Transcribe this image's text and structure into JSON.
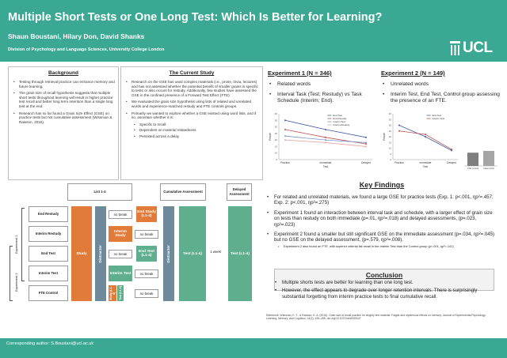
{
  "header": {
    "title": "Multiple Short Tests or One Long Test: Which Is Better for Learning?",
    "authors": "Shaun Boustani, Hilary Don, David Shanks",
    "department": "Division of Psychology and Language Sciences, University College London",
    "logo_text": "UCL"
  },
  "background": {
    "title": "Background",
    "bullets": [
      "Testing through retrieval practice can enhance memory and future learning.",
      "The grain size of recall hypothesis suggests that multiple short tests throughout learning will result in higher practice test recall and better long term retention than a single long test at the end.",
      "Research has so far found a Grain Size Effect (GSE) on practice tests but not cumulative assessment (Wissman & Rawson, 2015)."
    ]
  },
  "current_study": {
    "title": "The Current Study",
    "bullets": [
      "Research on the GSE has used complex materials (i.e., prose, trivia, lectures) and has not assessed whether the potential benefit of smaller grains is specific to tests or also occurs for restudy. Additionally, few studies have assessed the GSE in the confined presence of a Forward Test Effect (FTE).",
      "We evaluated the grain size hypothesis using lists of related and unrelated words and experience-matched restudy and FTE controls groups.",
      "Primarily we wanted to explore whether a GSE existed using word lists, and if so, ascertain whether it is:"
    ],
    "sub_bullets": [
      "Specific to recall",
      "Dependent on material relatedness",
      "Persisted across a delay"
    ]
  },
  "experiment1": {
    "title": "Experiment 1 (N = 346)",
    "bullets": [
      "Related words",
      "Interval Task (Test; Restudy) vs Task Schedule (Interim; End)."
    ],
    "legend": [
      "End Test",
      "End Restudy",
      "Interim Test",
      "Interim Restudy"
    ],
    "x_label": "Test",
    "y_label": "Recall"
  },
  "experiment2": {
    "title": "Experiment 2 (N = 149)",
    "bullets": [
      "Unrelated words",
      "Interim Test, End Test, Control group assessing the presence of an FTE."
    ],
    "legend": [
      "End Test",
      "Interim Test"
    ],
    "x_label": "Test",
    "y_label": "Recall",
    "bar_labels": [
      "FTE Control",
      "Interim Test"
    ]
  },
  "chart_data": [
    {
      "type": "line",
      "categories": [
        "Practice",
        "Immediate",
        "Delayed"
      ],
      "ylim": [
        5,
        40
      ],
      "yticks": [
        5,
        10,
        15,
        20,
        25,
        30,
        35,
        40
      ],
      "series": [
        {
          "name": "End Test",
          "values": [
            35,
            28,
            22
          ],
          "color": "#3d5aa8"
        },
        {
          "name": "End Restudy",
          "values": [
            28,
            22,
            17
          ],
          "color": "#c0504d"
        },
        {
          "name": "Interim Test",
          "values": [
            23,
            20,
            18
          ],
          "color": "#7b96c8"
        },
        {
          "name": "Interim Restudy",
          "values": [
            20,
            18,
            15
          ],
          "color": "#e5a3a0"
        }
      ]
    },
    {
      "type": "line",
      "categories": [
        "Practice",
        "Immediate",
        "Delayed"
      ],
      "ylim": [
        0,
        40
      ],
      "yticks": [
        0,
        5,
        10,
        15,
        20,
        25,
        30,
        35,
        40
      ],
      "series": [
        {
          "name": "End Test",
          "values": [
            30,
            20,
            8
          ],
          "color": "#3d5aa8"
        },
        {
          "name": "Interim Test",
          "values": [
            25,
            22,
            9
          ],
          "color": "#c0504d"
        }
      ]
    },
    {
      "type": "bar",
      "categories": [
        "FTE Control",
        "Interim Test"
      ],
      "values": [
        15,
        17
      ],
      "ylim": [
        0,
        25
      ],
      "colors": [
        "#7f7f7f",
        "#a5a5a5"
      ]
    }
  ],
  "design": {
    "header_list": "List 1-4",
    "header_cumulative": "Cumulative Assessment",
    "header_delayed": "Delayed Assessment",
    "rows": [
      "End Restudy",
      "Interim Restudy",
      "End Test",
      "Interim Test",
      "FTE Control"
    ],
    "exp1_label": "Experiment 1",
    "exp2_label": "Experiment 2",
    "study": "Study",
    "distractor": "Distractor",
    "no_break": "no break",
    "end_study": "End Study (L1-4)",
    "interim_study": "Interim Study",
    "end_test": "End Test (L1-4)",
    "interim_test": "Interim Test",
    "study_small": "Study (L1-4)",
    "test_l14": "Test (L1-4)",
    "one_week": "1 week",
    "colors": {
      "study": "#e07b39",
      "distractor": "#6e8a9a",
      "test": "#5fae8e"
    }
  },
  "key_findings": {
    "title": "Key Findings",
    "bullets": [
      "For related and unrelated materials, we found a large GSE for practice tests (Exp. 1: p<.001, ηp²=.457; Exp. 2: p<.001, ηp²=.275)",
      "Experiment 1 found an interaction between interval task and schedule, with a larger effect of grain size on tests than restudy on both immediate (p=.01, ηp²=.018) and delayed assessments, (p=.023, ηp²=.023)",
      "Experiment 2 found a smaller but still significant GSE on the immediate assessment (p=.034, ηp²=.045) but no GSE on the delayed assessment, (p=.579, ηp²=.008)."
    ],
    "sub_bullet": "Experiment 2 also found an FTE, with superior criterial list recall in the Interim Test than the Control group (p<.001, ηp²=.141)"
  },
  "conclusion": {
    "title": "Conclusion",
    "bullets": [
      "Multiple shorts tests are better for learning than one long test.",
      "However, the effect appears to degrade over longer retention intervals. There is surprisingly substantial forgetting from interim practice tests to final cumulative recall."
    ]
  },
  "reference": "Reference: Wissman, K. T., & Rawson, K. A. (2015). Grain size of recall practice for lengthy text material: Fragile and mysterious effects on memory. Journal of Experimental Psychology: Learning, Memory, and Cognition, 41(2), 439–455. doi.org/10.1037/xlm0000047",
  "footer": {
    "contact": "Corresponding author: S.Boustani@ucl.ac.uk"
  }
}
